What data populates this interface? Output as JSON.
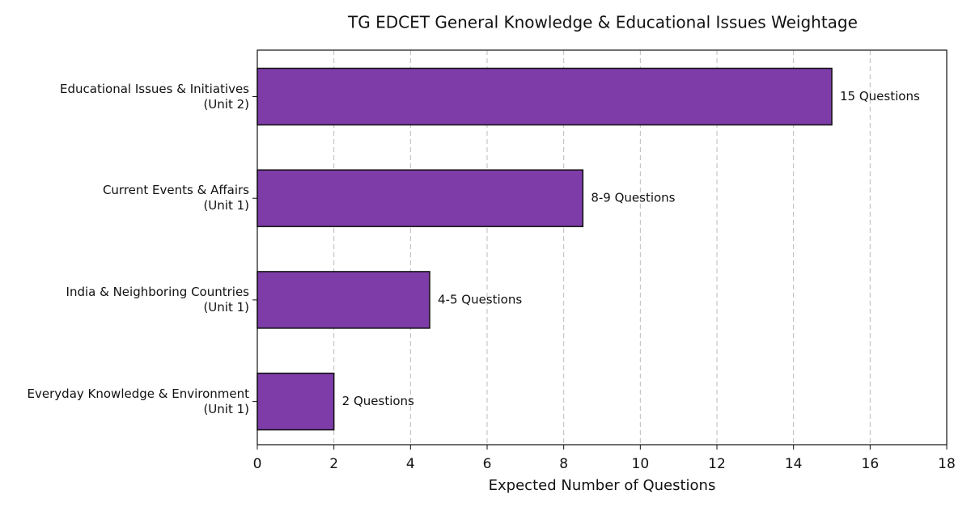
{
  "chart_data": {
    "type": "barh",
    "title": "TG EDCET General Knowledge & Educational Issues Weightage",
    "xlabel": "Expected Number of Questions",
    "categories": [
      "Educational Issues & Initiatives\n(Unit 2)",
      "Current Events & Affairs\n(Unit 1)",
      "India & Neighboring Countries\n(Unit 1)",
      "Everyday Knowledge & Environment\n(Unit 1)"
    ],
    "values": [
      15,
      8.5,
      4.5,
      2
    ],
    "value_labels": [
      "15 Questions",
      "8-9 Questions",
      "4-5 Questions",
      "2 Questions"
    ],
    "color": "#7d3ca8",
    "xlim": [
      0,
      18
    ],
    "xticks": [
      0,
      2,
      4,
      6,
      8,
      10,
      12,
      14,
      16,
      18
    ],
    "grid": true
  }
}
